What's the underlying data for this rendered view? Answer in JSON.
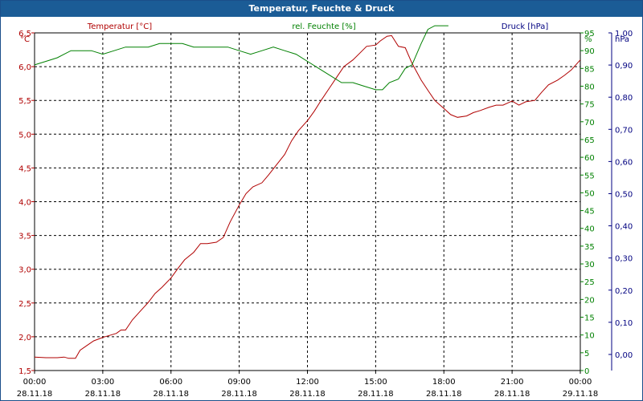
{
  "window": {
    "title": "Temperatur, Feuchte & Druck"
  },
  "chart_data": {
    "type": "line",
    "title": "Temperatur, Feuchte & Druck",
    "x_labels": [
      {
        "time": "00:00",
        "date": "28.11.18"
      },
      {
        "time": "03:00",
        "date": "28.11.18"
      },
      {
        "time": "06:00",
        "date": "28.11.18"
      },
      {
        "time": "09:00",
        "date": "28.11.18"
      },
      {
        "time": "12:00",
        "date": "28.11.18"
      },
      {
        "time": "15:00",
        "date": "28.11.18"
      },
      {
        "time": "18:00",
        "date": "28.11.18"
      },
      {
        "time": "21:00",
        "date": "28.11.18"
      },
      {
        "time": "00:00",
        "date": "29.11.18"
      }
    ],
    "xlim": [
      0,
      24
    ],
    "grid": true,
    "axes": {
      "temperature": {
        "label": "Temperatur [°C]",
        "unit": "°C",
        "color": "#b00000",
        "side": "left",
        "ylim": [
          1.5,
          6.5
        ],
        "ticks": [
          "1,5",
          "2,0",
          "2,5",
          "3,0",
          "3,5",
          "4,0",
          "4,5",
          "5,0",
          "5,5",
          "6,0",
          "6,5"
        ]
      },
      "humidity": {
        "label": "rel. Feuchte [%]",
        "unit": "%",
        "color": "#008000",
        "side": "right",
        "ylim": [
          0,
          95
        ],
        "ticks": [
          "0",
          "5",
          "10",
          "15",
          "20",
          "25",
          "30",
          "35",
          "40",
          "45",
          "50",
          "55",
          "60",
          "65",
          "70",
          "75",
          "80",
          "85",
          "90",
          "95"
        ]
      },
      "pressure": {
        "label": "Druck [hPa]",
        "unit": "hPa",
        "color": "#000080",
        "side": "right",
        "ylim": [
          -0.05,
          1.0
        ],
        "ticks": [
          "0,00",
          "0,10",
          "0,20",
          "0,30",
          "0,40",
          "0,50",
          "0,60",
          "0,70",
          "0,80",
          "0,90",
          "1,00"
        ]
      }
    },
    "series": [
      {
        "name": "Temperatur [°C]",
        "axis": "temperature",
        "color": "#b00000",
        "x": [
          0,
          0.5,
          1,
          1.3,
          1.5,
          1.8,
          2.0,
          2.3,
          2.6,
          3.0,
          3.3,
          3.6,
          3.8,
          4.0,
          4.3,
          4.6,
          5.0,
          5.3,
          5.6,
          6.0,
          6.3,
          6.6,
          7.0,
          7.3,
          7.6,
          8.0,
          8.3,
          8.6,
          9.0,
          9.3,
          9.6,
          10.0,
          10.3,
          10.6,
          11.0,
          11.3,
          11.6,
          12.0,
          12.3,
          12.6,
          13.0,
          13.3,
          13.6,
          14.0,
          14.3,
          14.6,
          15.0,
          15.2,
          15.5,
          15.7,
          16.0,
          16.3,
          16.6,
          17.0,
          17.3,
          17.6,
          18.0,
          18.3,
          18.6,
          19.0,
          19.3,
          19.6,
          20.0,
          20.3,
          20.6,
          21.0,
          21.3,
          21.6,
          22.0,
          22.3,
          22.6,
          23.0,
          23.3,
          23.6,
          24.0
        ],
        "values": [
          1.7,
          1.69,
          1.69,
          1.7,
          1.68,
          1.68,
          1.8,
          1.87,
          1.94,
          1.99,
          2.02,
          2.05,
          2.1,
          2.1,
          2.25,
          2.36,
          2.51,
          2.64,
          2.73,
          2.87,
          3.01,
          3.14,
          3.25,
          3.38,
          3.38,
          3.4,
          3.47,
          3.7,
          3.95,
          4.12,
          4.22,
          4.28,
          4.4,
          4.53,
          4.7,
          4.9,
          5.05,
          5.2,
          5.34,
          5.5,
          5.7,
          5.85,
          6.0,
          6.1,
          6.2,
          6.3,
          6.32,
          6.38,
          6.45,
          6.46,
          6.3,
          6.28,
          6.05,
          5.8,
          5.65,
          5.5,
          5.38,
          5.29,
          5.25,
          5.27,
          5.32,
          5.35,
          5.4,
          5.43,
          5.43,
          5.49,
          5.43,
          5.48,
          5.5,
          5.62,
          5.73,
          5.8,
          5.87,
          5.95,
          6.1
        ]
      },
      {
        "name": "rel. Feuchte [%]",
        "axis": "humidity",
        "color": "#008000",
        "x": [
          0,
          0.5,
          1,
          1.3,
          1.6,
          2.0,
          2.5,
          3.0,
          3.5,
          4.0,
          4.5,
          5.0,
          5.5,
          6.0,
          6.5,
          7.0,
          7.5,
          8.0,
          8.5,
          9.0,
          9.5,
          10.0,
          10.5,
          11.0,
          11.5,
          12.0,
          12.5,
          13.0,
          13.5,
          14.0,
          14.5,
          15.0,
          15.3,
          15.6,
          16.0,
          16.3,
          16.6,
          17.0,
          17.3,
          17.6,
          17.9,
          18.2,
          24.0
        ],
        "values": [
          86,
          87,
          88,
          89,
          90,
          90,
          90,
          89,
          90,
          91,
          91,
          91,
          92,
          92,
          92,
          91,
          91,
          91,
          91,
          90,
          89,
          90,
          91,
          90,
          89,
          87,
          85,
          83,
          81,
          81,
          80,
          79,
          79,
          81,
          82,
          85,
          86,
          92,
          96,
          97,
          97,
          97,
          null
        ]
      },
      {
        "name": "Druck [hPa]",
        "axis": "pressure",
        "color": "#000080",
        "x": [],
        "values": []
      }
    ]
  }
}
